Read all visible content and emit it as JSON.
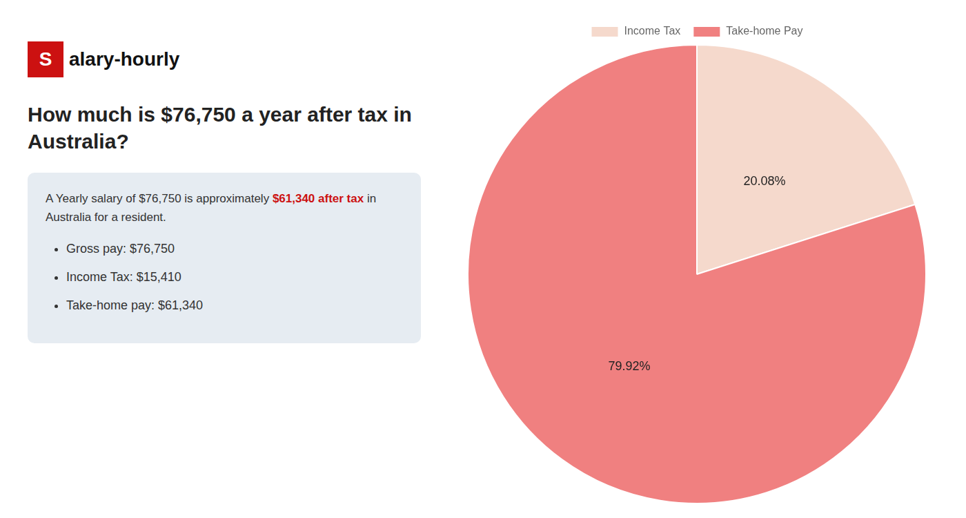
{
  "chart_data": {
    "type": "pie",
    "title": "How much is $76,750 a year after tax in\nAustralia?",
    "categories": [
      "Income Tax",
      "Take-home Pay"
    ],
    "values": [
      20.08,
      79.92
    ],
    "value_labels": [
      "20.08%",
      "79.92%"
    ],
    "colors": [
      "#f5d9cc",
      "#f08080"
    ],
    "data_labels": true,
    "legend": "top",
    "annotations": [
      [
        {
          "text": "S",
          "color": "#cc1111"
        },
        {
          "text": "alary-hourly"
        }
      ],
      [
        {
          "text": "A Yearly salary of $76,750 is approximately "
        },
        {
          "text": "$61,340 after tax",
          "color": "#cc1111"
        },
        {
          "text": " in"
        }
      ],
      [
        {
          "text": "Australia for a resident."
        }
      ],
      [
        {
          "text": "Gross pay: $76,750"
        }
      ],
      [
        {
          "text": "Income Tax: $15,410"
        }
      ],
      [
        {
          "text": "Take-home pay: $61,340"
        }
      ]
    ]
  }
}
